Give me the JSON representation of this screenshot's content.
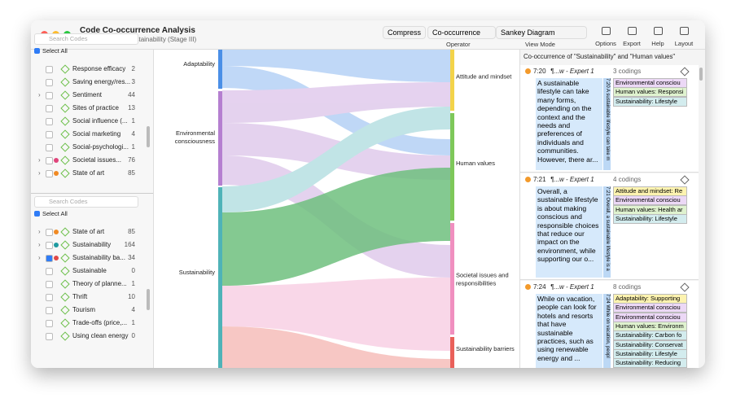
{
  "header": {
    "title": "Code Co-occurrence Analysis",
    "subtitle": "Sample Project: Sustainability (Stage III)"
  },
  "toolbar": {
    "compress": "Compress",
    "operator": "Co-occurrence",
    "operator_label": "Operator",
    "view": "Sankey Diagram",
    "view_label": "View Mode",
    "buttons": [
      "Options",
      "Export",
      "Help",
      "Layout"
    ]
  },
  "code_panels": [
    {
      "search": "Search Codes",
      "select_all": "Select All",
      "top": 100,
      "items": [
        {
          "label": "Response efficacy",
          "count": "2",
          "expand": false,
          "dot": null,
          "checked": false
        },
        {
          "label": "Saving energy/res...",
          "count": "3",
          "expand": false,
          "dot": null,
          "checked": false
        },
        {
          "label": "Sentiment",
          "count": "44",
          "expand": true,
          "dot": null,
          "checked": false
        },
        {
          "label": "Sites of practice",
          "count": "13",
          "expand": false,
          "dot": null,
          "checked": false
        },
        {
          "label": "Social influence (...",
          "count": "1",
          "expand": false,
          "dot": null,
          "checked": false
        },
        {
          "label": "Social marketing",
          "count": "4",
          "expand": false,
          "dot": null,
          "checked": false
        },
        {
          "label": "Social-psychologi...",
          "count": "1",
          "expand": false,
          "dot": null,
          "checked": false
        },
        {
          "label": "Societal issues...",
          "count": "76",
          "expand": true,
          "dot": "#e0457b",
          "checked": false
        },
        {
          "label": "State of art",
          "count": "85",
          "expand": true,
          "dot": "#f08a24",
          "checked": false
        }
      ]
    },
    {
      "search": "Search Codes",
      "select_all": "Select All",
      "top": 300,
      "items": [
        {
          "label": "State of art",
          "count": "85",
          "expand": true,
          "dot": "#f08a24",
          "checked": false
        },
        {
          "label": "Sustainability",
          "count": "164",
          "expand": true,
          "dot": "#1f9aa0",
          "checked": false
        },
        {
          "label": "Sustainability ba...",
          "count": "34",
          "expand": true,
          "dot": "#e04848",
          "checked": true
        },
        {
          "label": "Sustainable",
          "count": "0",
          "expand": false,
          "dot": null,
          "checked": false
        },
        {
          "label": "Theory of planne...",
          "count": "1",
          "expand": false,
          "dot": null,
          "checked": false
        },
        {
          "label": "Thrift",
          "count": "10",
          "expand": false,
          "dot": null,
          "checked": false
        },
        {
          "label": "Tourism",
          "count": "4",
          "expand": false,
          "dot": null,
          "checked": false
        },
        {
          "label": "Trade-offs (price,...",
          "count": "1",
          "expand": false,
          "dot": null,
          "checked": false
        },
        {
          "label": "Using clean energy",
          "count": "0",
          "expand": false,
          "dot": null,
          "checked": false
        }
      ]
    }
  ],
  "sankey": {
    "sources": [
      {
        "label": "Adaptability",
        "color": "#4a8fe7"
      },
      {
        "label": "Environmental consciousness",
        "color": "#b57fd0"
      },
      {
        "label": "Sustainability",
        "color": "#4fb3b8"
      }
    ],
    "targets": [
      {
        "label": "Attitude and mindset",
        "color": "#f3d34a"
      },
      {
        "label": "Human values",
        "color": "#7ec85a"
      },
      {
        "label": "Societal issues and responsibilities",
        "color": "#f08fbf"
      },
      {
        "label": "Sustainability barriers",
        "color": "#e9605a"
      }
    ]
  },
  "quotes": {
    "title": "Co-occurrence of \"Sustainability\" and \"Human values\"",
    "cards": [
      {
        "id": "7:20",
        "source": "¶...w - Expert 1",
        "codings": "3 codings",
        "strip": "7:20 A sustainable lifestyle can take m",
        "text": "A sustainable lifestyle can take many forms, depending on the context and the needs and preferences of individuals and communities. However, there ar...",
        "tags": [
          "Environmental consciou",
          "Human values: Responsi",
          "Sustainability: Lifestyle"
        ]
      },
      {
        "id": "7:21",
        "source": "¶...w - Expert 1",
        "codings": "4 codings",
        "strip": "7:21 Overall, a sustainable lifestyle is a",
        "text": "Overall, a sustainable lifestyle is about making conscious and responsible choices that reduce our impact on the environment, while supporting our o...",
        "tags": [
          "Attitude and mindset: Re",
          "Environmental consciou",
          "Human values: Health ar",
          "Sustainability: Lifestyle"
        ]
      },
      {
        "id": "7:24",
        "source": "¶...w - Expert 1",
        "codings": "8 codings",
        "strip": "7:24 While on vacation, peopl",
        "text": "While on vacation, people can look for hotels and resorts that have sustainable practices, such as using renewable energy and ...",
        "tags": [
          "Adaptability: Supporting",
          "Environmental consciou",
          "Environmental consciou",
          "Human values: Environm",
          "Sustainability: Carbon fo",
          "Sustainability: Conservat",
          "Sustainability: Lifestyle",
          "Sustainability: Reducing"
        ]
      }
    ]
  }
}
